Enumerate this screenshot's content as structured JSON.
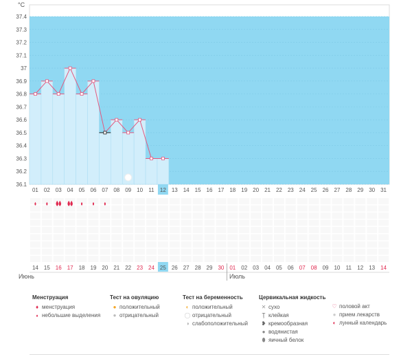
{
  "chart_data": {
    "type": "line",
    "ylabel": "°C",
    "ylim": [
      36.1,
      37.5
    ],
    "y_ticks": [
      "36.1",
      "36.2",
      "36.3",
      "36.4",
      "36.5",
      "36.6",
      "36.7",
      "36.8",
      "36.9",
      "37",
      "37.1",
      "37.2",
      "37.3",
      "37.4"
    ],
    "days": [
      "01",
      "02",
      "03",
      "04",
      "05",
      "06",
      "07",
      "08",
      "09",
      "10",
      "11",
      "12",
      "13",
      "14",
      "15",
      "16",
      "17",
      "18",
      "19",
      "20",
      "21",
      "22",
      "23",
      "24",
      "25",
      "26",
      "27",
      "28",
      "29",
      "30",
      "31"
    ],
    "dates": [
      "14",
      "15",
      "16",
      "17",
      "18",
      "19",
      "20",
      "21",
      "22",
      "23",
      "24",
      "25",
      "26",
      "27",
      "28",
      "29",
      "30",
      "01",
      "02",
      "03",
      "04",
      "05",
      "06",
      "07",
      "08",
      "09",
      "10",
      "11",
      "12",
      "13",
      "14"
    ],
    "red_dates_idx": [
      2,
      3,
      9,
      10,
      16,
      17,
      23,
      24,
      30
    ],
    "current_idx": 11,
    "temperature": [
      36.8,
      36.9,
      36.8,
      37.0,
      36.8,
      36.9,
      36.5,
      36.6,
      36.5,
      36.6,
      36.3,
      36.3
    ],
    "menstruation": [
      "small",
      "small",
      "heavy",
      "heavy",
      "small",
      "small",
      "small"
    ],
    "lunar_calendar_day": 8,
    "month_labels": [
      "Июнь",
      "Июль"
    ],
    "colors": {
      "bg": "#90d8f2",
      "bar": "#d2eefb",
      "line": "#e4587e",
      "current": "#90d8f2",
      "red": "#e0284f"
    }
  },
  "legend": {
    "menstruation": {
      "title": "Менструация",
      "items": [
        "менструация",
        "небольшие выделения"
      ]
    },
    "ovulation": {
      "title": "Тест на овуляцию",
      "items": [
        "положительный",
        "отрицательный"
      ]
    },
    "pregnancy": {
      "title": "Тест на беременность",
      "items": [
        "положительный",
        "отрицательный",
        "слабоположительный"
      ]
    },
    "cervical": {
      "title": "Цервикальная жидкость",
      "items": [
        "сухо",
        "клейкая",
        "кремообразная",
        "водянистая",
        "яичный белок"
      ]
    },
    "other": {
      "items": [
        "половой акт",
        "прием лекарств",
        "лунный календарь"
      ]
    }
  }
}
